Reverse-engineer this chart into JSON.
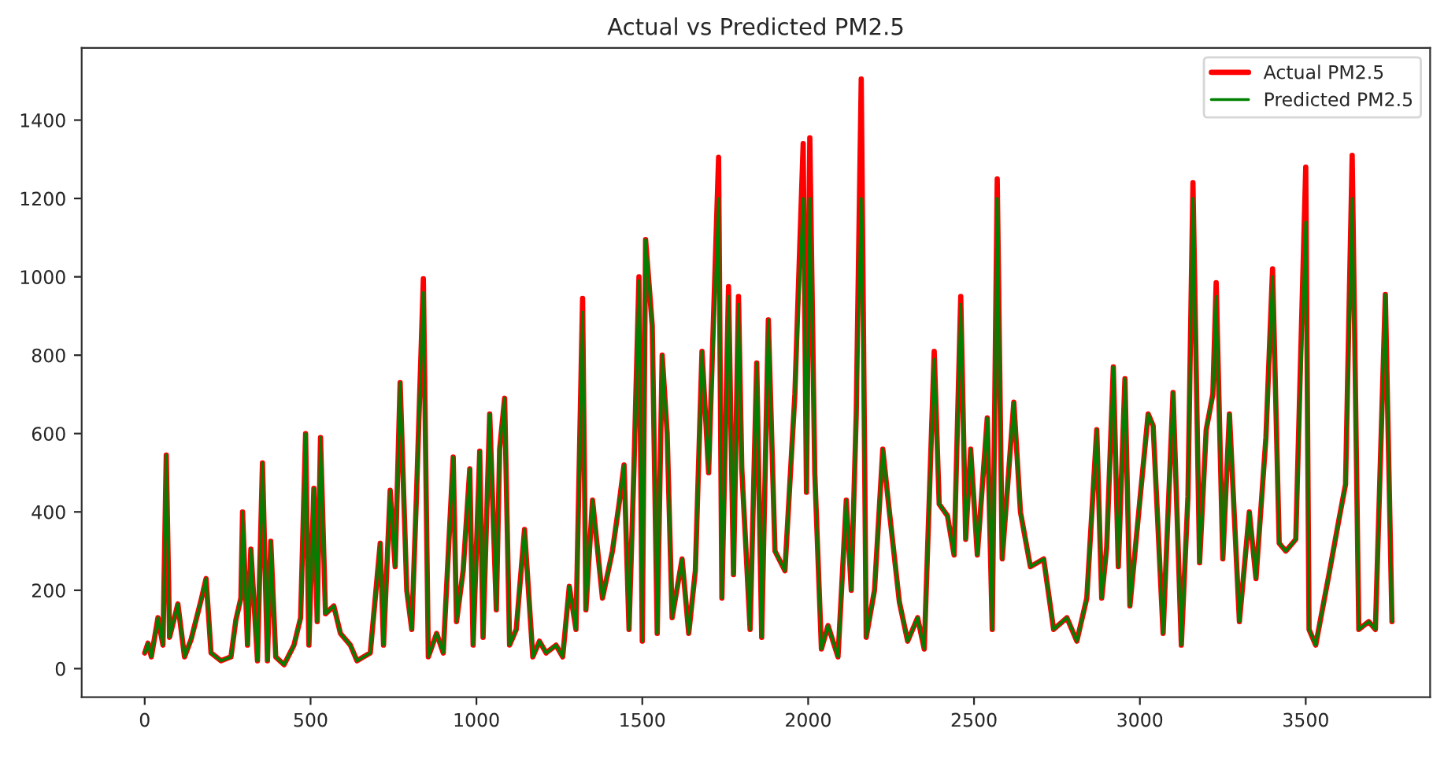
{
  "chart_data": {
    "type": "line",
    "title": "Actual vs Predicted PM2.5",
    "x": [
      0,
      10,
      20,
      40,
      55,
      65,
      75,
      100,
      120,
      140,
      170,
      185,
      200,
      230,
      260,
      275,
      290,
      295,
      310,
      320,
      340,
      355,
      370,
      380,
      395,
      420,
      450,
      470,
      485,
      495,
      510,
      520,
      530,
      545,
      570,
      590,
      620,
      640,
      680,
      710,
      720,
      740,
      755,
      770,
      790,
      805,
      820,
      840,
      855,
      880,
      900,
      930,
      940,
      960,
      980,
      990,
      1010,
      1020,
      1040,
      1060,
      1070,
      1085,
      1100,
      1120,
      1145,
      1170,
      1190,
      1210,
      1240,
      1260,
      1280,
      1300,
      1320,
      1330,
      1350,
      1380,
      1410,
      1430,
      1445,
      1460,
      1475,
      1490,
      1500,
      1510,
      1530,
      1545,
      1560,
      1575,
      1590,
      1620,
      1640,
      1660,
      1680,
      1700,
      1730,
      1740,
      1760,
      1775,
      1790,
      1800,
      1825,
      1845,
      1860,
      1880,
      1900,
      1930,
      1960,
      1985,
      1995,
      2005,
      2020,
      2040,
      2060,
      2090,
      2115,
      2130,
      2145,
      2160,
      2175,
      2200,
      2225,
      2245,
      2275,
      2300,
      2330,
      2350,
      2380,
      2395,
      2420,
      2440,
      2460,
      2475,
      2490,
      2510,
      2540,
      2555,
      2570,
      2585,
      2620,
      2640,
      2670,
      2710,
      2740,
      2780,
      2810,
      2840,
      2870,
      2885,
      2900,
      2920,
      2935,
      2955,
      2970,
      3000,
      3025,
      3040,
      3070,
      3100,
      3125,
      3145,
      3160,
      3180,
      3200,
      3220,
      3230,
      3250,
      3270,
      3300,
      3330,
      3350,
      3380,
      3400,
      3420,
      3440,
      3470,
      3500,
      3510,
      3530,
      3570,
      3600,
      3620,
      3640,
      3660,
      3690,
      3710,
      3740,
      3760
    ],
    "series": [
      {
        "name": "Actual PM2.5",
        "color": "#ff0000",
        "values": [
          40,
          65,
          30,
          130,
          60,
          545,
          80,
          165,
          30,
          75,
          175,
          230,
          40,
          20,
          30,
          125,
          180,
          400,
          60,
          305,
          20,
          525,
          20,
          325,
          30,
          10,
          60,
          130,
          600,
          60,
          460,
          120,
          590,
          140,
          160,
          90,
          60,
          20,
          40,
          320,
          60,
          455,
          260,
          730,
          200,
          100,
          460,
          995,
          30,
          90,
          40,
          540,
          120,
          250,
          510,
          60,
          555,
          80,
          650,
          150,
          560,
          690,
          60,
          100,
          355,
          30,
          70,
          40,
          60,
          30,
          210,
          100,
          945,
          150,
          430,
          180,
          300,
          420,
          520,
          100,
          515,
          1000,
          70,
          1095,
          875,
          90,
          800,
          600,
          130,
          280,
          90,
          250,
          810,
          500,
          1305,
          180,
          975,
          240,
          950,
          510,
          100,
          780,
          80,
          890,
          300,
          250,
          700,
          1340,
          450,
          1355,
          500,
          50,
          110,
          30,
          430,
          200,
          650,
          1505,
          80,
          200,
          560,
          400,
          170,
          70,
          130,
          50,
          810,
          420,
          390,
          290,
          950,
          330,
          560,
          290,
          640,
          100,
          1250,
          280,
          680,
          400,
          260,
          280,
          100,
          130,
          70,
          180,
          610,
          180,
          310,
          770,
          260,
          740,
          160,
          430,
          650,
          620,
          90,
          705,
          60,
          440,
          1240,
          270,
          610,
          700,
          985,
          280,
          650,
          120,
          400,
          230,
          590,
          1020,
          320,
          300,
          330,
          1280,
          100,
          60,
          240,
          380,
          470,
          1310,
          100,
          120,
          100,
          955,
          120
        ]
      },
      {
        "name": "Predicted PM2.5",
        "color": "#008000",
        "values": [
          40,
          65,
          30,
          130,
          60,
          545,
          80,
          165,
          30,
          75,
          175,
          230,
          40,
          20,
          30,
          125,
          180,
          400,
          60,
          305,
          20,
          525,
          20,
          325,
          30,
          10,
          60,
          130,
          600,
          60,
          460,
          120,
          590,
          140,
          160,
          90,
          60,
          20,
          40,
          320,
          60,
          455,
          260,
          730,
          200,
          100,
          460,
          960,
          30,
          90,
          40,
          540,
          120,
          250,
          510,
          60,
          555,
          80,
          650,
          150,
          560,
          690,
          60,
          100,
          355,
          30,
          70,
          40,
          60,
          30,
          210,
          100,
          910,
          150,
          430,
          180,
          300,
          420,
          520,
          100,
          515,
          990,
          70,
          1095,
          875,
          90,
          800,
          600,
          130,
          280,
          90,
          250,
          810,
          500,
          1200,
          180,
          950,
          240,
          930,
          510,
          100,
          780,
          80,
          890,
          300,
          250,
          700,
          1200,
          450,
          1200,
          500,
          50,
          110,
          30,
          430,
          200,
          650,
          1200,
          80,
          200,
          560,
          400,
          170,
          70,
          130,
          50,
          790,
          420,
          390,
          290,
          930,
          330,
          560,
          290,
          640,
          100,
          1200,
          280,
          680,
          400,
          260,
          280,
          100,
          130,
          70,
          180,
          610,
          180,
          310,
          770,
          260,
          740,
          160,
          430,
          650,
          620,
          90,
          705,
          60,
          440,
          1200,
          270,
          610,
          700,
          950,
          280,
          650,
          120,
          400,
          230,
          590,
          1000,
          320,
          300,
          330,
          1140,
          100,
          60,
          240,
          380,
          470,
          1200,
          100,
          120,
          100,
          955,
          120
        ]
      }
    ],
    "xlim": [
      -190,
      3875
    ],
    "ylim": [
      -73,
      1584
    ],
    "xticks": [
      0,
      500,
      1000,
      1500,
      2000,
      2500,
      3000,
      3500
    ],
    "yticks": [
      0,
      200,
      400,
      600,
      800,
      1000,
      1200,
      1400
    ],
    "grid": false,
    "legend": "top right",
    "line_style": "solid",
    "marker": "none"
  }
}
